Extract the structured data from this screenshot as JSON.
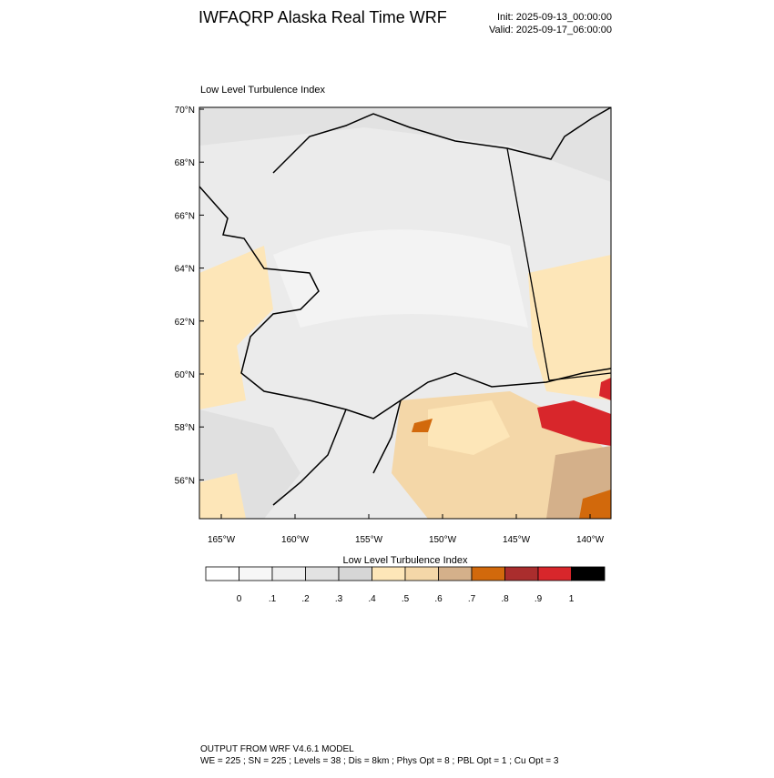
{
  "header": {
    "title": "IWFAQRP Alaska Real Time WRF",
    "init": "Init: 2025-09-13_00:00:00",
    "valid": "Valid: 2025-09-17_06:00:00"
  },
  "map": {
    "title": "Low Level Turbulence Index",
    "lat_labels": [
      "70°N",
      "68°N",
      "66°N",
      "64°N",
      "62°N",
      "60°N",
      "58°N",
      "56°N"
    ],
    "lon_labels": [
      "165°W",
      "160°W",
      "155°W",
      "150°W",
      "145°W",
      "140°W"
    ]
  },
  "colorbar": {
    "title": "Low Level Turbulence Index",
    "colors": [
      "#ffffff",
      "#f7f7f7",
      "#efefef",
      "#e2e2e2",
      "#d6d6d6",
      "#fde6b8",
      "#f4d7a8",
      "#d4b08a",
      "#d2690c",
      "#aa2d2d",
      "#d8262b",
      "#000000"
    ],
    "labels": [
      "0",
      ".1",
      ".2",
      ".3",
      ".4",
      ".5",
      ".6",
      ".7",
      ".8",
      ".9",
      "1"
    ]
  },
  "footer": {
    "line1": "OUTPUT FROM WRF V4.6.1 MODEL",
    "line2": "WE = 225 ; SN = 225 ; Levels = 38 ; Dis = 8km ; Phys Opt = 8 ; PBL Opt = 1 ; Cu Opt = 3"
  }
}
